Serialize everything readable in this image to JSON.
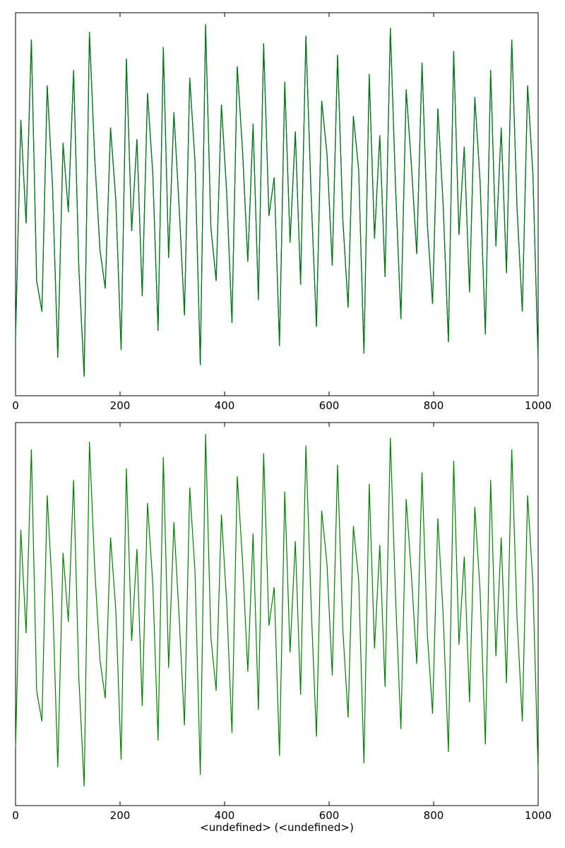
{
  "chart_data": [
    {
      "type": "line",
      "title": "",
      "xlabel": "",
      "ylabel": "",
      "xlim": [
        0,
        1000
      ],
      "ylim": [
        0,
        1
      ],
      "x_ticks": [
        "0",
        "200",
        "400",
        "600",
        "800",
        "1000"
      ],
      "y_ticks": [],
      "grid": false,
      "legend": "none",
      "series": [
        {
          "color": "#0000ff",
          "values": [
            0.15,
            0.72,
            0.45,
            0.93,
            0.3,
            0.22,
            0.81,
            0.55,
            0.1,
            0.66,
            0.48,
            0.85,
            0.33,
            0.05,
            0.95,
            0.62,
            0.38,
            0.28,
            0.7,
            0.51,
            0.12,
            0.88,
            0.43,
            0.67,
            0.26,
            0.79,
            0.58,
            0.17,
            0.91,
            0.36,
            0.74,
            0.49,
            0.21,
            0.83,
            0.61,
            0.08,
            0.97,
            0.44,
            0.3,
            0.76,
            0.53,
            0.19,
            0.86,
            0.64,
            0.35,
            0.71,
            0.25,
            0.92,
            0.47,
            0.57,
            0.13,
            0.82,
            0.4,
            0.69,
            0.29,
            0.94,
            0.52,
            0.18,
            0.77,
            0.63,
            0.34,
            0.89,
            0.46,
            0.23,
            0.73,
            0.59,
            0.11,
            0.84,
            0.41,
            0.68,
            0.31,
            0.96,
            0.54,
            0.2,
            0.8,
            0.6,
            0.37,
            0.87,
            0.45,
            0.24,
            0.75,
            0.5,
            0.14,
            0.9,
            0.42,
            0.65,
            0.27,
            0.78,
            0.56,
            0.16,
            0.85,
            0.39,
            0.7,
            0.32,
            0.93,
            0.49,
            0.22,
            0.81,
            0.58,
            0.09
          ]
        },
        {
          "color": "#008000",
          "values": [
            0.15,
            0.72,
            0.45,
            0.93,
            0.3,
            0.22,
            0.81,
            0.55,
            0.1,
            0.66,
            0.48,
            0.85,
            0.33,
            0.05,
            0.95,
            0.62,
            0.38,
            0.28,
            0.7,
            0.51,
            0.12,
            0.88,
            0.43,
            0.67,
            0.26,
            0.79,
            0.58,
            0.17,
            0.91,
            0.36,
            0.74,
            0.49,
            0.21,
            0.83,
            0.61,
            0.08,
            0.97,
            0.44,
            0.3,
            0.76,
            0.53,
            0.19,
            0.86,
            0.64,
            0.35,
            0.71,
            0.25,
            0.92,
            0.47,
            0.57,
            0.13,
            0.82,
            0.4,
            0.69,
            0.29,
            0.94,
            0.52,
            0.18,
            0.77,
            0.63,
            0.34,
            0.89,
            0.46,
            0.23,
            0.73,
            0.59,
            0.11,
            0.84,
            0.41,
            0.68,
            0.31,
            0.96,
            0.54,
            0.2,
            0.8,
            0.6,
            0.37,
            0.87,
            0.45,
            0.24,
            0.75,
            0.5,
            0.14,
            0.9,
            0.42,
            0.65,
            0.27,
            0.78,
            0.56,
            0.16,
            0.85,
            0.39,
            0.7,
            0.32,
            0.93,
            0.49,
            0.22,
            0.81,
            0.58,
            0.09
          ]
        }
      ]
    },
    {
      "type": "line",
      "title": "",
      "xlabel": "<undefined> (<undefined>)",
      "ylabel": "",
      "xlim": [
        0,
        1000
      ],
      "ylim": [
        0,
        1
      ],
      "x_ticks": [
        "0",
        "200",
        "400",
        "600",
        "800",
        "1000"
      ],
      "y_ticks": [],
      "grid": false,
      "legend": "none",
      "series": [
        {
          "color": "#008000",
          "values": [
            0.15,
            0.72,
            0.45,
            0.93,
            0.3,
            0.22,
            0.81,
            0.55,
            0.1,
            0.66,
            0.48,
            0.85,
            0.33,
            0.05,
            0.95,
            0.62,
            0.38,
            0.28,
            0.7,
            0.51,
            0.12,
            0.88,
            0.43,
            0.67,
            0.26,
            0.79,
            0.58,
            0.17,
            0.91,
            0.36,
            0.74,
            0.49,
            0.21,
            0.83,
            0.61,
            0.08,
            0.97,
            0.44,
            0.3,
            0.76,
            0.53,
            0.19,
            0.86,
            0.64,
            0.35,
            0.71,
            0.25,
            0.92,
            0.47,
            0.57,
            0.13,
            0.82,
            0.4,
            0.69,
            0.29,
            0.94,
            0.52,
            0.18,
            0.77,
            0.63,
            0.34,
            0.89,
            0.46,
            0.23,
            0.73,
            0.59,
            0.11,
            0.84,
            0.41,
            0.68,
            0.31,
            0.96,
            0.54,
            0.2,
            0.8,
            0.6,
            0.37,
            0.87,
            0.45,
            0.24,
            0.75,
            0.5,
            0.14,
            0.9,
            0.42,
            0.65,
            0.27,
            0.78,
            0.56,
            0.16,
            0.85,
            0.39,
            0.7,
            0.32,
            0.93,
            0.49,
            0.22,
            0.81,
            0.58,
            0.09
          ]
        }
      ]
    }
  ]
}
